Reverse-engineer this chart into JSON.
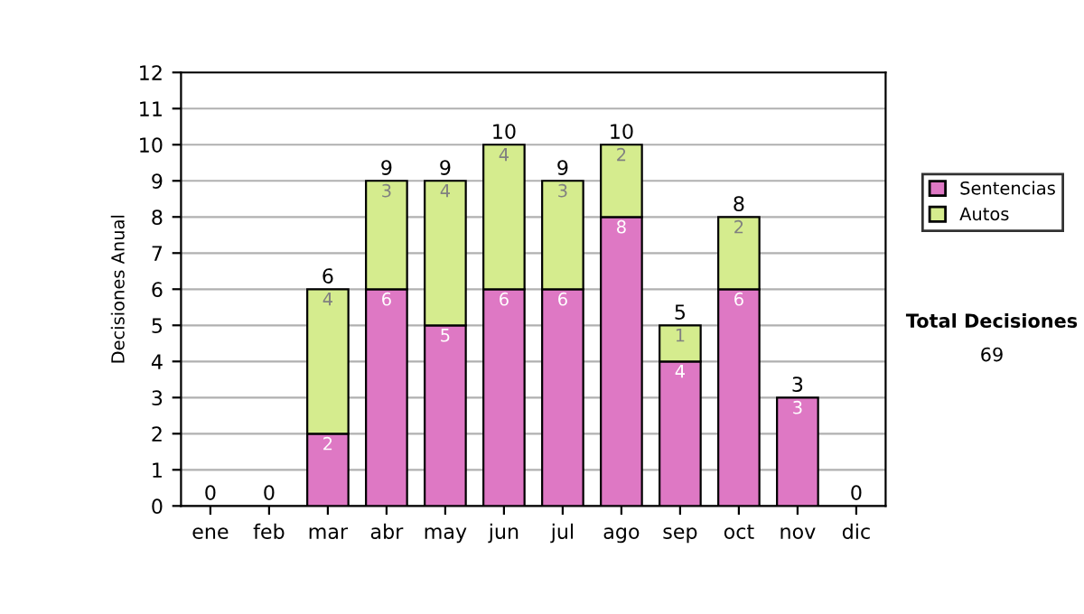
{
  "chart_data": {
    "type": "bar",
    "stacked": true,
    "ylabel": "Decisiones Anual",
    "categories": [
      "ene",
      "feb",
      "mar",
      "abr",
      "may",
      "jun",
      "jul",
      "ago",
      "sep",
      "oct",
      "nov",
      "dic"
    ],
    "series": [
      {
        "name": "Sentencias",
        "color": "#de78c4",
        "values": [
          0,
          0,
          2,
          6,
          5,
          6,
          6,
          8,
          4,
          6,
          3,
          0
        ],
        "value_labels": [
          null,
          null,
          "2",
          "6",
          "5",
          "6",
          "6",
          "8",
          "4",
          "6",
          "3",
          null
        ]
      },
      {
        "name": "Autos",
        "color": "#d5ec8e",
        "values": [
          0,
          0,
          4,
          3,
          4,
          4,
          3,
          2,
          1,
          2,
          0,
          0
        ],
        "value_labels": [
          null,
          null,
          "4",
          "3",
          "4",
          "4",
          "3",
          "2",
          "1",
          "2",
          null,
          null
        ]
      }
    ],
    "totals": [
      "0",
      "0",
      "6",
      "9",
      "9",
      "10",
      "9",
      "10",
      "5",
      "8",
      "3",
      "0"
    ],
    "ylim": [
      0,
      12
    ],
    "yticks": [
      0,
      1,
      2,
      3,
      4,
      5,
      6,
      7,
      8,
      9,
      10,
      11,
      12
    ],
    "grid": "y",
    "legend": "right",
    "annotations": [
      "Total Decisiones",
      "69"
    ]
  }
}
